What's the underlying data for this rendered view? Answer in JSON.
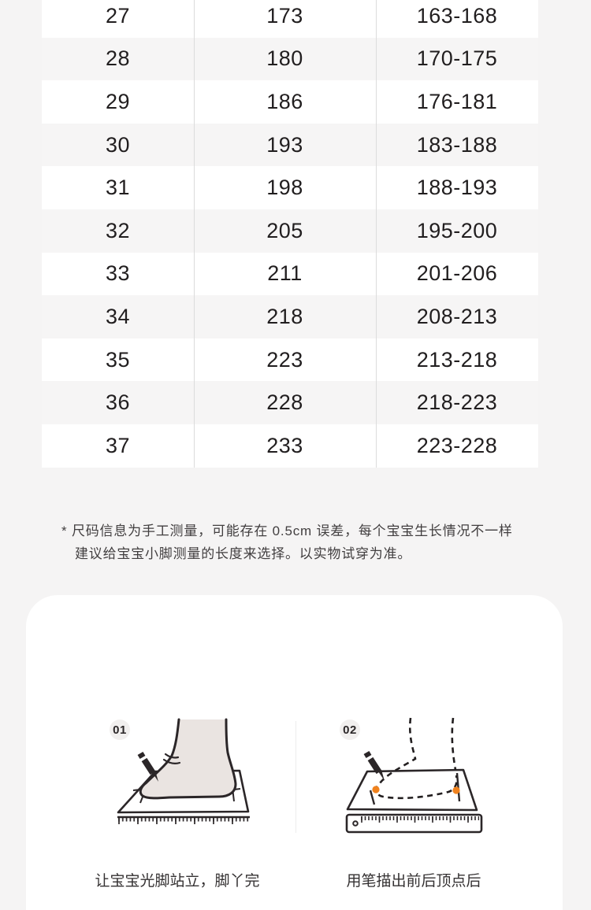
{
  "size_table": {
    "columns": [
      "size",
      "insole_length_mm",
      "foot_length_range_mm"
    ],
    "rows": [
      [
        "27",
        "173",
        "163-168"
      ],
      [
        "28",
        "180",
        "170-175"
      ],
      [
        "29",
        "186",
        "176-181"
      ],
      [
        "30",
        "193",
        "183-188"
      ],
      [
        "31",
        "198",
        "188-193"
      ],
      [
        "32",
        "205",
        "195-200"
      ],
      [
        "33",
        "211",
        "201-206"
      ],
      [
        "34",
        "218",
        "208-213"
      ],
      [
        "35",
        "223",
        "213-218"
      ],
      [
        "36",
        "228",
        "218-223"
      ],
      [
        "37",
        "233",
        "223-228"
      ]
    ]
  },
  "note": {
    "line1": "* 尺码信息为手工测量，可能存在 0.5cm 误差，每个宝宝生长情况不一样",
    "line2": "建议给宝宝小脚测量的长度来选择。以实物试穿为准。"
  },
  "measure_guide": {
    "steps": [
      {
        "badge": "01",
        "caption": "让宝宝光脚站立，脚丫完"
      },
      {
        "badge": "02",
        "caption": "用笔描出前后顶点后"
      }
    ]
  },
  "colors": {
    "page_bg": "#f5f4f4",
    "row_alt": "#f6f5f5",
    "table_divider": "#dcdcdc",
    "accent_orange": "#f0821e",
    "illustration_stroke": "#2b2628",
    "foot_fill": "#eae4e1"
  }
}
